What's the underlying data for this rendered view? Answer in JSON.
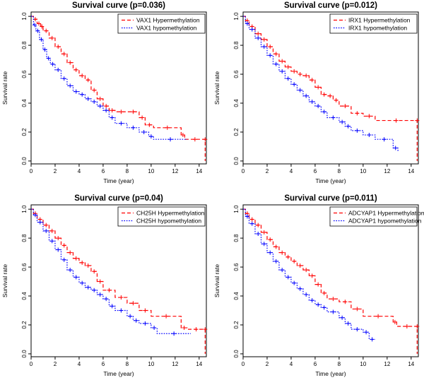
{
  "chart_data": [
    {
      "type": "line",
      "title": "Survival curve (p=0.036)",
      "xlabel": "Time (year)",
      "ylabel": "Survival rate",
      "xlim": [
        0,
        14.6
      ],
      "ylim": [
        -0.02,
        1.03
      ],
      "xticks": [
        "0",
        "2",
        "4",
        "6",
        "8",
        "10",
        "12",
        "14"
      ],
      "yticks": [
        "0.0",
        "0.2",
        "0.4",
        "0.6",
        "0.8",
        "1.0"
      ],
      "legend_position": "top-right",
      "series": [
        {
          "name": "VAX1 Hypermethylation",
          "color": "#ff0000",
          "x": [
            0,
            0.2,
            0.5,
            0.8,
            1.0,
            1.5,
            2.0,
            2.5,
            3.0,
            3.5,
            4.0,
            4.5,
            5.0,
            5.5,
            6.0,
            6.5,
            7.0,
            8.0,
            9.0,
            9.5,
            10.2,
            12.5,
            12.8,
            14.5,
            14.5
          ],
          "y": [
            1.0,
            0.98,
            0.95,
            0.93,
            0.9,
            0.85,
            0.79,
            0.74,
            0.68,
            0.63,
            0.59,
            0.56,
            0.49,
            0.43,
            0.38,
            0.35,
            0.34,
            0.34,
            0.3,
            0.25,
            0.23,
            0.18,
            0.15,
            0.15,
            0.0
          ]
        },
        {
          "name": "VAX1 hypomethylation",
          "color": "#0000ff",
          "x": [
            0,
            0.2,
            0.4,
            0.7,
            1.0,
            1.3,
            1.6,
            2.0,
            2.5,
            3.0,
            3.5,
            4.0,
            4.5,
            5.0,
            5.5,
            6.0,
            6.5,
            7.0,
            8.0,
            9.0,
            9.8,
            10.2,
            13.0
          ],
          "y": [
            1.0,
            0.94,
            0.9,
            0.84,
            0.77,
            0.71,
            0.67,
            0.63,
            0.57,
            0.52,
            0.48,
            0.46,
            0.43,
            0.41,
            0.38,
            0.35,
            0.3,
            0.26,
            0.23,
            0.2,
            0.17,
            0.15,
            0.15
          ]
        }
      ]
    },
    {
      "type": "line",
      "title": "Survival curve (p=0.012)",
      "xlabel": "Time (year)",
      "ylabel": "Survival rate",
      "xlim": [
        0,
        14.6
      ],
      "ylim": [
        -0.02,
        1.03
      ],
      "xticks": [
        "0",
        "2",
        "4",
        "6",
        "8",
        "10",
        "12",
        "14"
      ],
      "yticks": [
        "0.0",
        "0.2",
        "0.4",
        "0.6",
        "0.8",
        "1.0"
      ],
      "legend_position": "top-right",
      "series": [
        {
          "name": "IRX1 Hypermethylation",
          "color": "#ff0000",
          "x": [
            0,
            0.2,
            0.5,
            1.0,
            1.5,
            2.0,
            2.5,
            3.0,
            3.5,
            4.0,
            4.5,
            5.0,
            5.5,
            6.0,
            6.5,
            7.0,
            7.5,
            8.0,
            9.0,
            10.0,
            11.0,
            14.5,
            14.5
          ],
          "y": [
            1.0,
            0.97,
            0.93,
            0.88,
            0.84,
            0.79,
            0.74,
            0.69,
            0.65,
            0.62,
            0.6,
            0.59,
            0.56,
            0.51,
            0.46,
            0.45,
            0.42,
            0.38,
            0.33,
            0.31,
            0.28,
            0.28,
            0.0
          ]
        },
        {
          "name": "IRX1 hypomethylation",
          "color": "#0000ff",
          "x": [
            0,
            0.2,
            0.5,
            1.0,
            1.5,
            2.0,
            2.5,
            3.0,
            3.5,
            4.0,
            4.5,
            5.0,
            5.5,
            6.0,
            6.5,
            7.0,
            8.0,
            8.5,
            9.0,
            10.0,
            11.0,
            12.5,
            12.9
          ],
          "y": [
            1.0,
            0.95,
            0.91,
            0.85,
            0.79,
            0.73,
            0.67,
            0.62,
            0.57,
            0.53,
            0.49,
            0.45,
            0.41,
            0.38,
            0.34,
            0.3,
            0.27,
            0.24,
            0.21,
            0.18,
            0.15,
            0.09,
            0.07
          ]
        }
      ]
    },
    {
      "type": "line",
      "title": "Survival curve (p=0.04)",
      "xlabel": "Time (year)",
      "ylabel": "Survival rate",
      "xlim": [
        0,
        14.6
      ],
      "ylim": [
        -0.02,
        1.03
      ],
      "xticks": [
        "0",
        "2",
        "4",
        "6",
        "8",
        "10",
        "12",
        "14"
      ],
      "yticks": [
        "0.0",
        "0.2",
        "0.4",
        "0.6",
        "0.8",
        "1.0"
      ],
      "legend_position": "top-right",
      "series": [
        {
          "name": "CH25H Hypermethylation",
          "color": "#ff0000",
          "x": [
            0,
            0.2,
            0.5,
            1.0,
            1.5,
            2.0,
            2.5,
            3.0,
            3.5,
            4.0,
            4.5,
            5.0,
            5.5,
            6.0,
            7.0,
            8.0,
            9.0,
            10.0,
            12.5,
            13.0,
            14.5,
            14.5
          ],
          "y": [
            1.0,
            0.97,
            0.93,
            0.89,
            0.85,
            0.8,
            0.75,
            0.7,
            0.66,
            0.63,
            0.61,
            0.57,
            0.5,
            0.44,
            0.39,
            0.35,
            0.3,
            0.26,
            0.18,
            0.17,
            0.17,
            0.0
          ]
        },
        {
          "name": "CH25H hypomethylation",
          "color": "#0000ff",
          "x": [
            0,
            0.2,
            0.5,
            1.0,
            1.5,
            2.0,
            2.5,
            3.0,
            3.5,
            4.0,
            4.5,
            5.0,
            5.5,
            6.0,
            6.5,
            7.0,
            8.0,
            8.5,
            9.0,
            10.0,
            10.5,
            13.3
          ],
          "y": [
            1.0,
            0.96,
            0.91,
            0.85,
            0.78,
            0.72,
            0.65,
            0.58,
            0.53,
            0.49,
            0.46,
            0.44,
            0.41,
            0.38,
            0.33,
            0.3,
            0.26,
            0.23,
            0.21,
            0.18,
            0.14,
            0.14
          ]
        }
      ]
    },
    {
      "type": "line",
      "title": "Survival curve (p=0.011)",
      "xlabel": "Time (year)",
      "ylabel": "Survival rate",
      "xlim": [
        0,
        14.6
      ],
      "ylim": [
        -0.02,
        1.03
      ],
      "xticks": [
        "0",
        "2",
        "4",
        "6",
        "8",
        "10",
        "12",
        "14"
      ],
      "yticks": [
        "0.0",
        "0.2",
        "0.4",
        "0.6",
        "0.8",
        "1.0"
      ],
      "legend_position": "top-right",
      "series": [
        {
          "name": "ADCYAP1 Hypermethylation",
          "color": "#ff0000",
          "x": [
            0,
            0.2,
            0.5,
            1.0,
            1.5,
            2.0,
            2.5,
            3.0,
            3.5,
            4.0,
            4.5,
            5.0,
            5.5,
            6.0,
            6.5,
            7.0,
            8.0,
            9.0,
            10.0,
            12.5,
            12.8,
            14.5,
            14.5
          ],
          "y": [
            1.0,
            0.97,
            0.93,
            0.89,
            0.84,
            0.79,
            0.74,
            0.7,
            0.67,
            0.64,
            0.61,
            0.58,
            0.54,
            0.48,
            0.42,
            0.38,
            0.36,
            0.31,
            0.26,
            0.22,
            0.19,
            0.19,
            0.0
          ]
        },
        {
          "name": "ADCYAP1 hypomethylation",
          "color": "#0000ff",
          "x": [
            0,
            0.2,
            0.5,
            1.0,
            1.5,
            2.0,
            2.5,
            3.0,
            3.5,
            4.0,
            4.5,
            5.0,
            5.5,
            6.0,
            6.5,
            7.0,
            8.0,
            8.5,
            9.0,
            10.0,
            10.5,
            11.0
          ],
          "y": [
            1.0,
            0.95,
            0.9,
            0.83,
            0.76,
            0.7,
            0.64,
            0.58,
            0.53,
            0.49,
            0.45,
            0.41,
            0.37,
            0.34,
            0.32,
            0.29,
            0.25,
            0.21,
            0.17,
            0.15,
            0.1,
            0.1
          ]
        }
      ]
    }
  ]
}
